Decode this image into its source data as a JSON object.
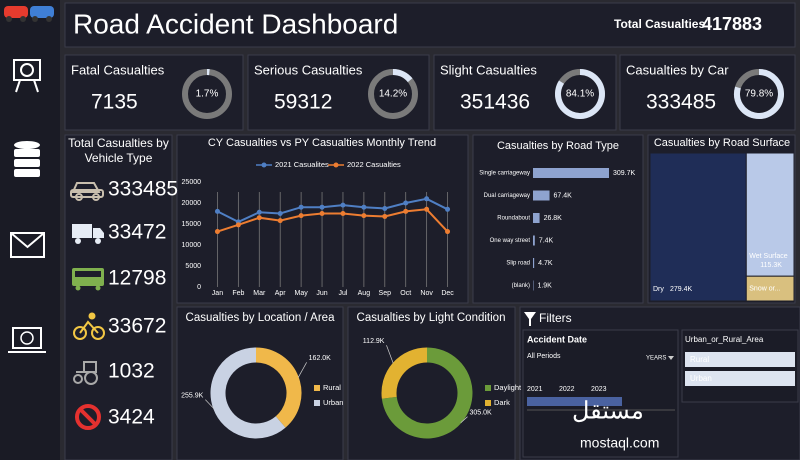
{
  "header": {
    "title": "Road Accident Dashboard",
    "total_label": "Total Casualties",
    "total_value": 417883
  },
  "kpis": [
    {
      "label": "Fatal Casualties",
      "value": 7135,
      "share": 1.7,
      "share_label": "1.7%"
    },
    {
      "label": "Serious Casualties",
      "value": 59312,
      "share": 14.2,
      "share_label": "14.2%"
    },
    {
      "label": "Slight Casualties",
      "value": 351436,
      "share": 84.1,
      "share_label": "84.1%"
    },
    {
      "label": "Casualties by Car",
      "value": 333485,
      "share": 79.8,
      "share_label": "79.8%"
    }
  ],
  "vehicles": {
    "title": "Total Casualties by Vehicle Type",
    "values": [
      333485,
      33472,
      12798,
      33672,
      1032,
      3424
    ],
    "colors": [
      "#c9bfae",
      "#e6ecf5",
      "#7fb04e",
      "#f2c744",
      "#a9a9a9",
      "#e5312f"
    ]
  },
  "chart_data": [
    {
      "type": "line",
      "title": "CY Casualties vs PY Casualties Monthly Trend",
      "categories": [
        "Jan",
        "Feb",
        "Mar",
        "Apr",
        "May",
        "Jun",
        "Jul",
        "Aug",
        "Sep",
        "Oct",
        "Nov",
        "Dec"
      ],
      "series": [
        {
          "name": "2021 Casualites",
          "color": "#4f7fc4",
          "values": [
            18000,
            15500,
            17800,
            17500,
            19000,
            19000,
            19500,
            19000,
            18700,
            20000,
            21000,
            18500
          ]
        },
        {
          "name": "2022 Casualties",
          "color": "#ed7d31",
          "values": [
            13200,
            14800,
            16500,
            15800,
            17000,
            17500,
            17500,
            17000,
            16800,
            18000,
            18500,
            13200
          ]
        }
      ],
      "ylim": [
        0,
        25000
      ],
      "yticks": [
        0,
        5000,
        10000,
        15000,
        20000,
        25000
      ]
    },
    {
      "type": "hbar",
      "title": "Casualties by Road Type",
      "categories": [
        "Single carriageway",
        "Dual carriageway",
        "Roundabout",
        "One way street",
        "Slip road",
        "(blank)"
      ],
      "values": [
        309700,
        67400,
        26800,
        7400,
        4700,
        1900
      ],
      "value_labels": [
        "309.7K",
        "67.4K",
        "26.8K",
        "7.4K",
        "4.7K",
        "1.9K"
      ],
      "color": "#8ea3cf"
    },
    {
      "type": "treemap",
      "title": "Casualties by Road Surface",
      "categories": [
        "Dry",
        "Wet Surface",
        "Snow or..."
      ],
      "values": [
        279400,
        115300,
        23200
      ],
      "value_labels": [
        "279.4K",
        "115.3K",
        null
      ],
      "colors": [
        "#1f2d57",
        "#b9c9e8",
        "#d9c07f"
      ]
    },
    {
      "type": "donut",
      "title": "Casualties by Location / Area",
      "categories": [
        "Rural",
        "Urban"
      ],
      "values": [
        162000,
        255900
      ],
      "value_labels": [
        "162.0K",
        "255.9K"
      ],
      "colors": [
        "#f0b84a",
        "#c9d2e3"
      ]
    },
    {
      "type": "donut",
      "title": "Casualties by Light Condition",
      "categories": [
        "Daylight",
        "Dark"
      ],
      "values": [
        305000,
        112900
      ],
      "value_labels": [
        "305.0K",
        "112.9K"
      ],
      "colors": [
        "#6b9b3a",
        "#e2b231"
      ]
    }
  ],
  "filters": {
    "title": "Filters",
    "date": {
      "title": "Accident Date",
      "period": "All Periods",
      "unit": "YEARS",
      "years": [
        "2021",
        "2022",
        "2023"
      ]
    },
    "area": {
      "title": "Urban_or_Rural_Area",
      "options": [
        "Rural",
        "Urban"
      ]
    }
  },
  "watermark": {
    "arabic": "مستقل",
    "latin": "mostaql.com"
  }
}
